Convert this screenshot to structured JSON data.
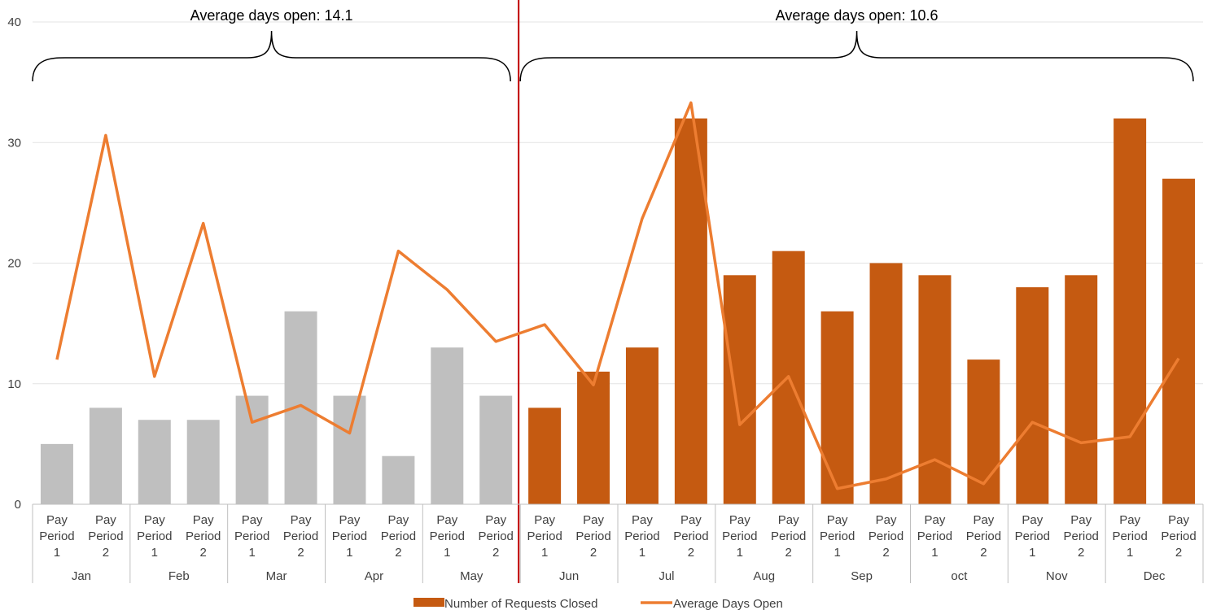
{
  "chart_data": {
    "type": "bar",
    "title": "",
    "xlabel": "",
    "ylabel": "",
    "ylim": [
      0,
      40
    ],
    "yticks": [
      0,
      10,
      20,
      30,
      40
    ],
    "grid": true,
    "legend_position": "bottom",
    "months": [
      "Jan",
      "Feb",
      "Mar",
      "Apr",
      "May",
      "Jun",
      "Jul",
      "Aug",
      "Sep",
      "oct",
      "Nov",
      "Dec"
    ],
    "period_labels": [
      [
        "Pay",
        "Period",
        "1"
      ],
      [
        "Pay",
        "Period",
        "2"
      ]
    ],
    "series": [
      {
        "name": "Number of Requests Closed",
        "type": "bar",
        "values": [
          5,
          8,
          7,
          7,
          9,
          16,
          9,
          4,
          13,
          9,
          8,
          11,
          13,
          32,
          19,
          21,
          16,
          20,
          19,
          12,
          18,
          19,
          32,
          27
        ]
      },
      {
        "name": "Average Days Open",
        "type": "line",
        "values": [
          12,
          30.6,
          10.6,
          23.3,
          6.8,
          8.2,
          5.9,
          21,
          17.8,
          13.5,
          14.9,
          9.9,
          23.7,
          33.3,
          6.6,
          10.6,
          1.3,
          2.1,
          3.7,
          1.7,
          6.8,
          5.1,
          5.6,
          12.1
        ]
      }
    ],
    "annotations": [
      {
        "text": "Average days open: 14.1",
        "spans": [
          "Jan",
          "May"
        ]
      },
      {
        "text": "Average days open: 10.6",
        "spans": [
          "Jun",
          "Dec"
        ]
      }
    ],
    "divider_after": "May"
  },
  "colors": {
    "bar_before": "#bfbfbf",
    "bar_after": "#c55a11",
    "line": "#ed7d31",
    "divider": "#c00000",
    "grid": "#e3e3e3",
    "axis": "#bfbfbf"
  }
}
